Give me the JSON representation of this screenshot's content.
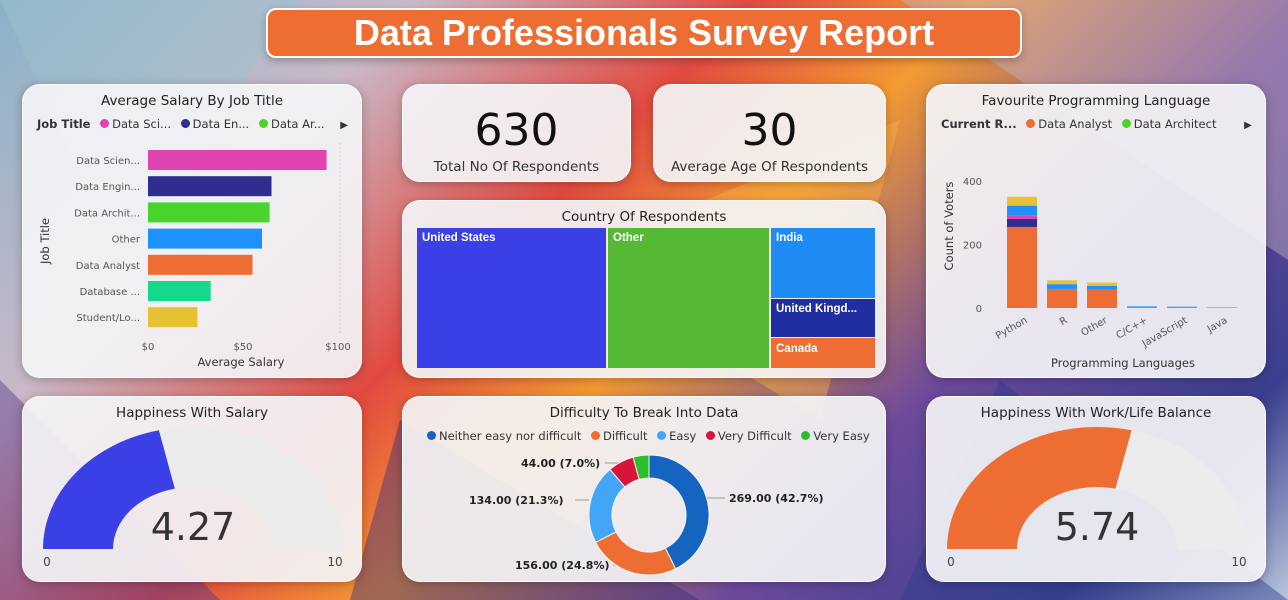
{
  "page": {
    "title": "Data Professionals Survey Report"
  },
  "colors": {
    "accent": "#ee6d33",
    "data_scientist": "#e044b0",
    "data_engineer": "#2e2e8f",
    "data_architect": "#48d42a",
    "other": "#1e90ff",
    "data_analyst": "#ee6d33",
    "database": "#14d98a",
    "student": "#e6c132"
  },
  "kpis": {
    "respondents": {
      "value": "630",
      "label": "Total No Of Respondents"
    },
    "age": {
      "value": "30",
      "label": "Average Age Of Respondents"
    }
  },
  "salary_chart": {
    "title": "Average Salary By Job Title",
    "legend_title": "Job Title",
    "legend_items": [
      "Data Sci...",
      "Data En...",
      "Data Ar..."
    ],
    "legend_arrow": "▶",
    "ylabel": "Job Title",
    "xlabel": "Average Salary",
    "x_ticks": [
      "$0",
      "$50",
      "$100"
    ]
  },
  "language_chart": {
    "title": "Favourite Programming Language",
    "legend_title": "Current R...",
    "legend_items": [
      "Data Analyst",
      "Data Architect"
    ],
    "legend_arrow": "▶",
    "ylabel": "Count of Voters",
    "xlabel": "Programming Languages",
    "y_ticks": [
      "0",
      "200",
      "400"
    ]
  },
  "country_chart": {
    "title": "Country Of Respondents",
    "items": [
      {
        "label": "United States",
        "color": "#3a3fe6"
      },
      {
        "label": "Other",
        "color": "#56b936"
      },
      {
        "label": "India",
        "color": "#1f8cf5"
      },
      {
        "label": "United Kingd...",
        "color": "#1f2ea0"
      },
      {
        "label": "Canada",
        "color": "#ee6d33"
      }
    ]
  },
  "happiness_salary": {
    "title": "Happiness With Salary",
    "value": "4.27",
    "min": "0",
    "max": "10",
    "color": "#3a3fe6"
  },
  "happiness_worklife": {
    "title": "Happiness With Work/Life Balance",
    "value": "5.74",
    "min": "0",
    "max": "10",
    "color": "#ee6d33"
  },
  "difficulty_chart": {
    "title": "Difficulty To Break Into Data",
    "legend": [
      {
        "label": "Neither easy nor difficult",
        "color": "#1565c0"
      },
      {
        "label": "Difficult",
        "color": "#ee6d33"
      },
      {
        "label": "Easy",
        "color": "#42a5f5"
      },
      {
        "label": "Very Difficult",
        "color": "#d9143a"
      },
      {
        "label": "Very Easy",
        "color": "#2bc02b"
      }
    ],
    "labels": {
      "neither": "269.00 (42.7%)",
      "difficult": "156.00 (24.8%)",
      "easy": "134.00 (21.3%)",
      "very_difficult": "44.00 (7.0%)"
    }
  },
  "chart_data": [
    {
      "type": "bar",
      "title": "Average Salary By Job Title",
      "xlabel": "Average Salary",
      "ylabel": "Job Title",
      "categories": [
        "Data Scien...",
        "Data Engin...",
        "Data Archit...",
        "Other",
        "Data Analyst",
        "Database ...",
        "Student/Lo..."
      ],
      "values": [
        94,
        65,
        64,
        60,
        55,
        33,
        26
      ],
      "colors": [
        "#e044b0",
        "#2e2e8f",
        "#48d42a",
        "#1e90ff",
        "#ee6d33",
        "#14d98a",
        "#e6c132"
      ],
      "xlim": [
        0,
        100
      ],
      "x_ticks": [
        "$0",
        "$50",
        "$100"
      ],
      "grid": false,
      "legend_position": "top"
    },
    {
      "type": "bar",
      "stacked": true,
      "title": "Favourite Programming Language",
      "xlabel": "Programming Languages",
      "ylabel": "Count of Voters",
      "categories": [
        "Python",
        "R",
        "Other",
        "C/C++",
        "JavaScript",
        "Java"
      ],
      "series": [
        {
          "name": "Data Analyst",
          "color": "#ee6d33",
          "values": [
            255,
            60,
            58,
            3,
            2,
            1
          ]
        },
        {
          "color": "#2e2e8f",
          "values": [
            25,
            0,
            0,
            0,
            0,
            0
          ]
        },
        {
          "color": "#e044b0",
          "values": [
            12,
            0,
            0,
            0,
            0,
            0
          ]
        },
        {
          "color": "#1e90ff",
          "values": [
            30,
            15,
            12,
            2,
            2,
            1
          ]
        },
        {
          "color": "#e6c132",
          "values": [
            28,
            12,
            10,
            0,
            0,
            0
          ]
        }
      ],
      "ylim": [
        0,
        450
      ],
      "y_ticks": [
        0,
        200,
        400
      ],
      "grid": false,
      "legend_position": "top"
    },
    {
      "type": "pie",
      "donut": true,
      "title": "Difficulty To Break Into Data",
      "categories": [
        "Neither easy nor difficult",
        "Difficult",
        "Easy",
        "Very Difficult",
        "Very Easy"
      ],
      "values": [
        269,
        156,
        134,
        44,
        27
      ],
      "colors": [
        "#1565c0",
        "#ee6d33",
        "#42a5f5",
        "#d9143a",
        "#2bc02b"
      ],
      "legend_position": "top"
    }
  ]
}
